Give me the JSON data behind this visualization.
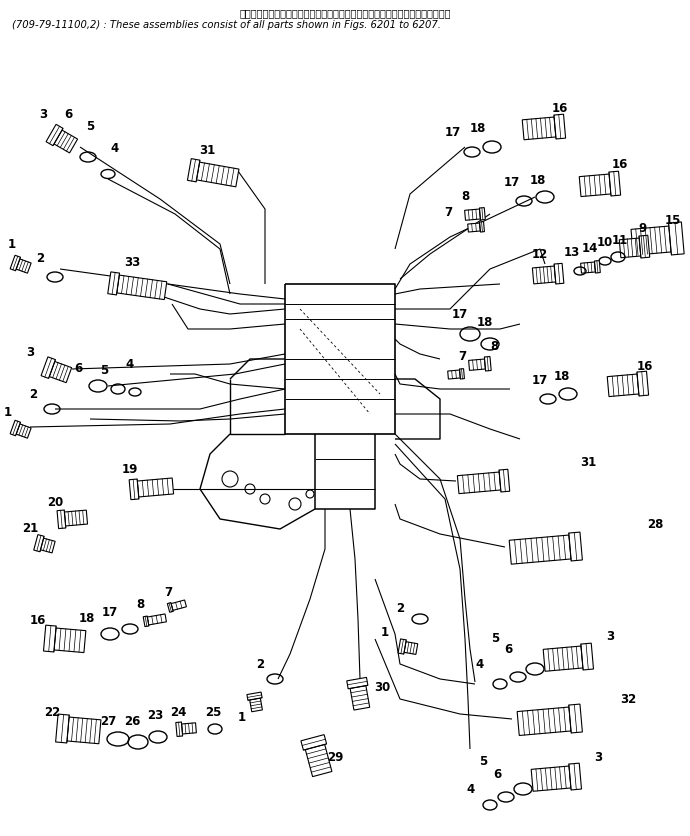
{
  "title_line1": "これらのアセンブリの構成部品は第６２０１図から第６２０７図まで含みます．",
  "title_line2": "(709-79-11100,2) : These assemblies consist of all parts shown in Figs. 6201 to 6207.",
  "bg_color": "#ffffff",
  "line_color": "#000000",
  "text_color": "#000000",
  "fig_width": 6.9,
  "fig_height": 8.37,
  "dpi": 100
}
